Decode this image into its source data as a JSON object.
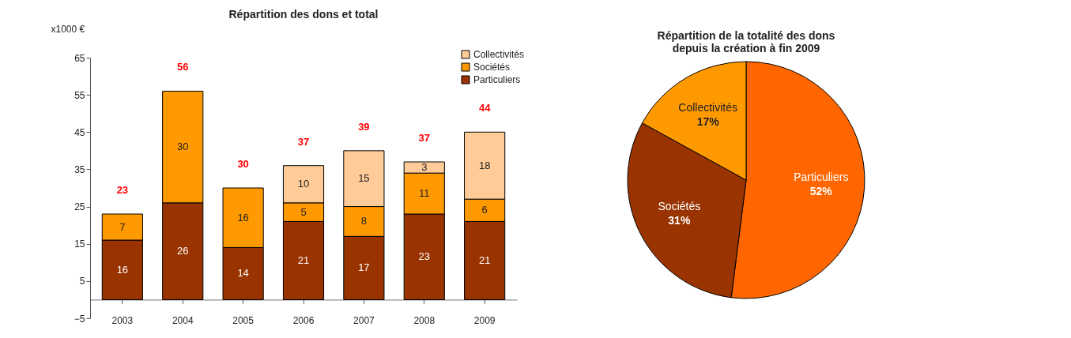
{
  "chart_data": [
    {
      "type": "bar",
      "title": "Répartition des dons et total",
      "ylabel": "x1000 €",
      "categories": [
        "2003",
        "2004",
        "2005",
        "2006",
        "2007",
        "2008",
        "2009"
      ],
      "stacked": true,
      "series": [
        {
          "name": "Particuliers",
          "color": "#993300",
          "values": [
            16,
            26,
            14,
            21,
            17,
            23,
            21
          ]
        },
        {
          "name": "Sociétés",
          "color": "#ff9900",
          "values": [
            7,
            30,
            16,
            5,
            8,
            11,
            6
          ]
        },
        {
          "name": "Collectivités",
          "color": "#ffcc99",
          "values": [
            null,
            null,
            null,
            10,
            15,
            3,
            18
          ]
        }
      ],
      "totals": [
        "23",
        "56",
        "30",
        "37",
        "39",
        "37",
        "44"
      ],
      "ylim": [
        -5,
        65
      ],
      "yticks": [
        -5,
        5,
        15,
        25,
        35,
        45,
        55,
        65
      ],
      "data_labels": true,
      "grid": false,
      "legend": "top right"
    },
    {
      "type": "pie",
      "title": "Répartition de la totalité des dons\ndepuis la création à fin 2009",
      "categories": [
        "Particuliers",
        "Sociétés",
        "Collectivités"
      ],
      "values": [
        52,
        31,
        17
      ],
      "value_labels": [
        "52%",
        "31%",
        "17%"
      ],
      "colors": [
        "#ff6600",
        "#993300",
        "#ff9900"
      ],
      "legend": false
    }
  ]
}
